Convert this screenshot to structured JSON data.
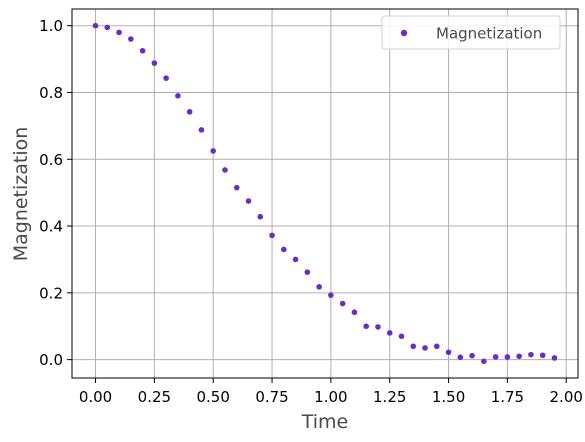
{
  "chart_data": {
    "type": "scatter",
    "title": "",
    "xlabel": "Time",
    "ylabel": "Magnetization",
    "xlim": [
      -0.1,
      2.05
    ],
    "ylim": [
      -0.055,
      1.05
    ],
    "xticks": [
      0.0,
      0.25,
      0.5,
      0.75,
      1.0,
      1.25,
      1.5,
      1.75,
      2.0
    ],
    "xtick_labels": [
      "0.00",
      "0.25",
      "0.50",
      "0.75",
      "1.00",
      "1.25",
      "1.50",
      "1.75",
      "2.00"
    ],
    "yticks": [
      0.0,
      0.2,
      0.4,
      0.6,
      0.8,
      1.0
    ],
    "ytick_labels": [
      "0.0",
      "0.2",
      "0.4",
      "0.6",
      "0.8",
      "1.0"
    ],
    "grid": true,
    "legend_position": "top-right",
    "series": [
      {
        "name": "Magnetization",
        "color": "#6a2bc9",
        "x": [
          0.0,
          0.05,
          0.1,
          0.15,
          0.2,
          0.25,
          0.3,
          0.35,
          0.4,
          0.45,
          0.5,
          0.55,
          0.6,
          0.65,
          0.7,
          0.75,
          0.8,
          0.85,
          0.9,
          0.95,
          1.0,
          1.05,
          1.1,
          1.15,
          1.2,
          1.25,
          1.3,
          1.35,
          1.4,
          1.45,
          1.5,
          1.55,
          1.6,
          1.65,
          1.7,
          1.75,
          1.8,
          1.85,
          1.9,
          1.95
        ],
        "y": [
          1.0,
          0.995,
          0.98,
          0.96,
          0.925,
          0.888,
          0.843,
          0.79,
          0.742,
          0.688,
          0.625,
          0.568,
          0.515,
          0.475,
          0.428,
          0.372,
          0.33,
          0.3,
          0.262,
          0.218,
          0.193,
          0.168,
          0.142,
          0.1,
          0.098,
          0.08,
          0.07,
          0.04,
          0.035,
          0.04,
          0.022,
          0.007,
          0.012,
          -0.005,
          0.008,
          0.008,
          0.01,
          0.015,
          0.013,
          0.005
        ]
      }
    ]
  }
}
